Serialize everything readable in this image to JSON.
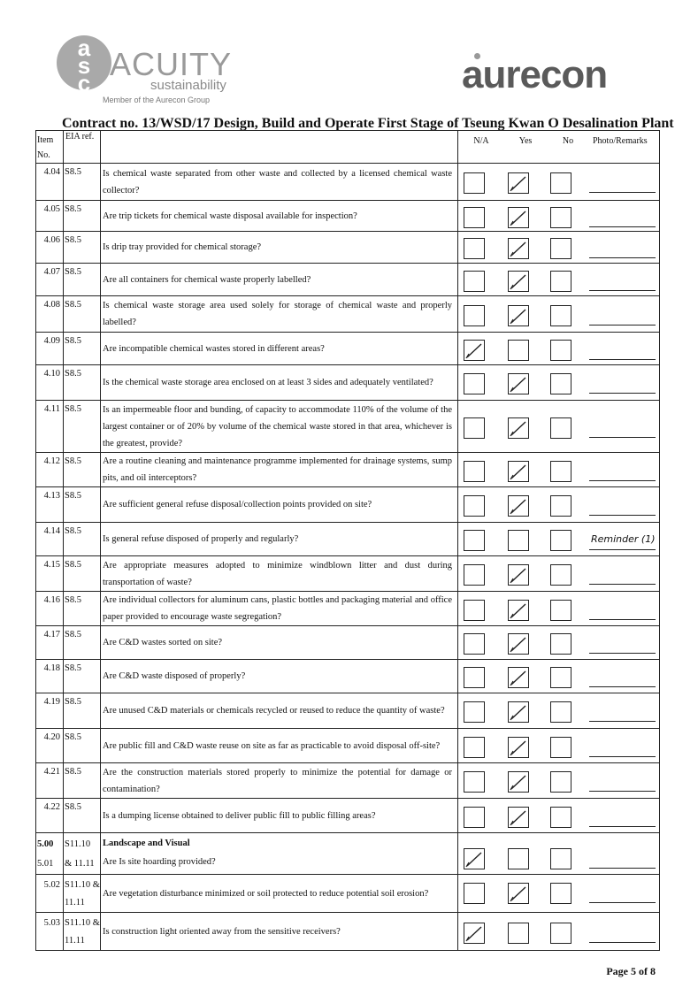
{
  "header": {
    "left_logo": {
      "name": "ACUITY",
      "sub": "sustainability",
      "member": "Member of the Aurecon Group",
      "mark": "asc"
    },
    "right_logo": "aurecon",
    "title": "Contract no.  13/WSD/17 Design, Build and Operate First Stage of Tseung Kwan O Desalination Plant"
  },
  "table": {
    "headers": {
      "item": "Item No.",
      "eia": "EIA ref.",
      "na": "N/A",
      "yes": "Yes",
      "no": "No",
      "remarks": "Photo/Remarks"
    },
    "rows": [
      {
        "item": "4.04",
        "eia": "S8.5",
        "q": "Is chemical waste separated from other waste and collected by a licensed chemical waste collector?",
        "checked": "yes",
        "remark": ""
      },
      {
        "item": "4.05",
        "eia": "S8.5",
        "q": "Are trip tickets for chemical waste disposal available for inspection?",
        "checked": "yes",
        "remark": ""
      },
      {
        "item": "4.06",
        "eia": "S8.5",
        "q": "Is drip tray provided for chemical storage?",
        "checked": "yes",
        "remark": ""
      },
      {
        "item": "4.07",
        "eia": "S8.5",
        "q": "Are all containers for chemical waste properly labelled?",
        "checked": "yes",
        "remark": ""
      },
      {
        "item": "4.08",
        "eia": "S8.5",
        "q": "Is chemical waste storage area used solely for storage of chemical waste and properly labelled?",
        "checked": "yes",
        "remark": ""
      },
      {
        "item": "4.09",
        "eia": "S8.5",
        "q": "Are incompatible chemical wastes stored in different areas?",
        "checked": "na",
        "remark": ""
      },
      {
        "item": "4.10",
        "eia": "S8.5",
        "q": "Is the chemical waste storage area enclosed on at least 3 sides and adequately ventilated?",
        "checked": "yes",
        "remark": ""
      },
      {
        "item": "4.11",
        "eia": "S8.5",
        "q": "Is an impermeable floor and bunding, of capacity to accommodate 110% of the volume of the largest container or of 20% by volume of the chemical waste stored in that area, whichever is the greatest, provide?",
        "checked": "yes",
        "remark": ""
      },
      {
        "item": "4.12",
        "eia": "S8.5",
        "q": "Are a routine cleaning and maintenance programme implemented for drainage systems, sump pits, and oil interceptors?",
        "checked": "yes",
        "remark": ""
      },
      {
        "item": "4.13",
        "eia": "S8.5",
        "q": "Are sufficient general refuse disposal/collection points provided on site?",
        "checked": "yes",
        "remark": ""
      },
      {
        "item": "4.14",
        "eia": "S8.5",
        "q": "Is general refuse disposed of properly and regularly?",
        "checked": "",
        "remark": "Reminder (1)"
      },
      {
        "item": "4.15",
        "eia": "S8.5",
        "q": "Are appropriate measures adopted to minimize windblown litter and dust during transportation of waste?",
        "checked": "yes",
        "remark": ""
      },
      {
        "item": "4.16",
        "eia": "S8.5",
        "q": "Are individual collectors for aluminum cans, plastic bottles and packaging material and office paper provided to encourage waste segregation?",
        "checked": "yes",
        "remark": ""
      },
      {
        "item": "4.17",
        "eia": "S8.5",
        "q": "Are C&D wastes sorted on site?",
        "checked": "yes",
        "remark": ""
      },
      {
        "item": "4.18",
        "eia": "S8.5",
        "q": "Are C&D waste disposed of properly?",
        "checked": "yes",
        "remark": ""
      },
      {
        "item": "4.19",
        "eia": "S8.5",
        "q": "Are unused C&D materials or chemicals recycled or reused to reduce the quantity of waste?",
        "checked": "yes",
        "remark": ""
      },
      {
        "item": "4.20",
        "eia": "S8.5",
        "q": "Are public fill and C&D waste reuse on site as far as practicable to avoid disposal off-site?",
        "checked": "yes",
        "remark": ""
      },
      {
        "item": "4.21",
        "eia": "S8.5",
        "q": "Are the construction materials stored properly to minimize the potential for damage or contamination?",
        "checked": "yes",
        "remark": ""
      },
      {
        "item": "4.22",
        "eia": "S8.5",
        "q": "Is a dumping license obtained to deliver public fill to public filling areas?",
        "checked": "yes",
        "remark": ""
      },
      {
        "item": "5.00",
        "item2": "5.01",
        "eia": "S11.10",
        "eia2": "& 11.11",
        "section": "Landscape and Visual",
        "q": "Are Is site hoarding provided?",
        "checked": "na",
        "remark": ""
      },
      {
        "item": "5.02",
        "eia": "S11.10 &",
        "eia2": "11.11",
        "q": "Are vegetation disturbance minimized or soil protected to reduce potential soil erosion?",
        "checked": "yes",
        "remark": ""
      },
      {
        "item": "5.03",
        "eia": "S11.10 &",
        "eia2": "11.11",
        "q": "Is construction light oriented away from the sensitive receivers?",
        "checked": "na",
        "remark": ""
      }
    ]
  },
  "footer": {
    "page": "Page 5 of 8"
  }
}
